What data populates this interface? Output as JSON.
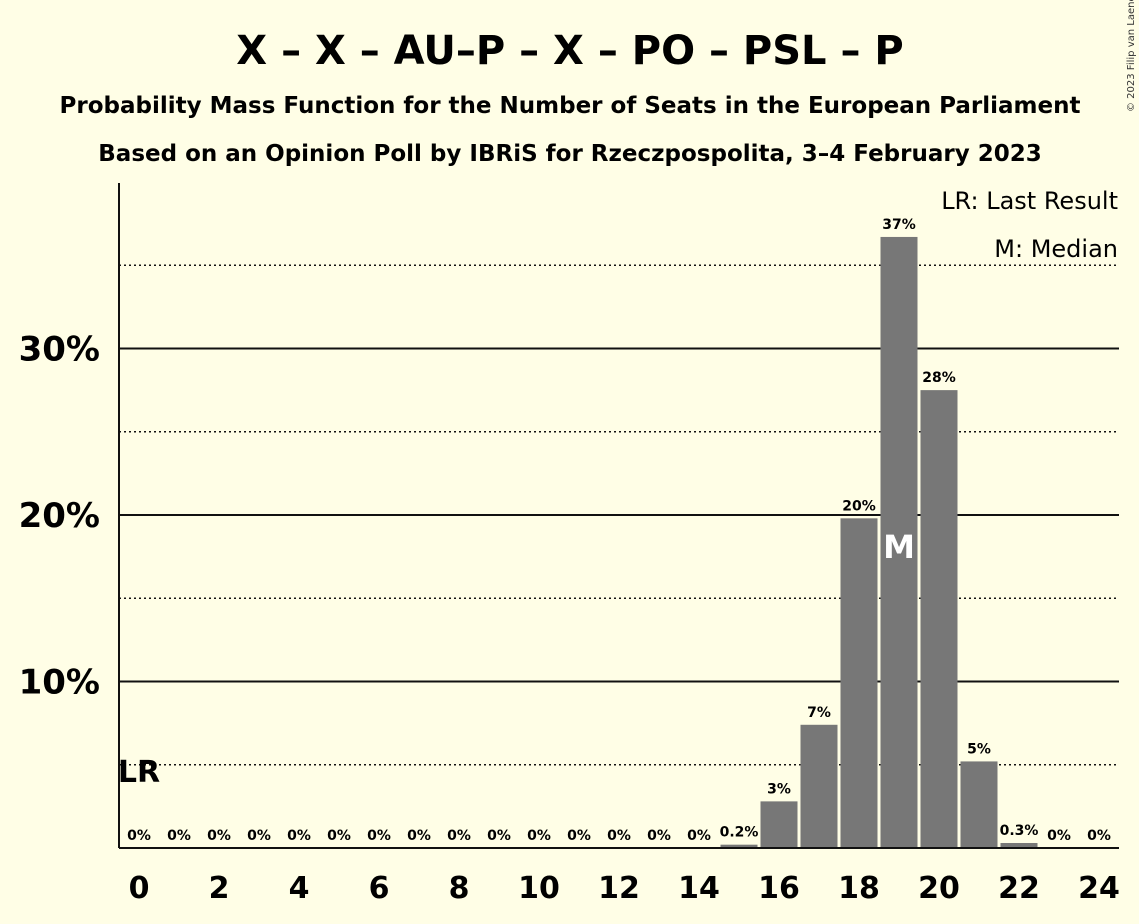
{
  "chart_data": {
    "type": "bar",
    "title": "X – X – AU–P – X – PO – PSL – P",
    "subtitle1": "Probability Mass Function for the Number of Seats in the European Parliament",
    "subtitle2": "Based on an Opinion Poll by IBRiS for Rzeczpospolita, 3–4 February 2023",
    "copyright": "© 2023 Filip van Laenen",
    "legend": {
      "lr": "LR: Last Result",
      "median": "M: Median",
      "position": "top-right"
    },
    "x": [
      0,
      1,
      2,
      3,
      4,
      5,
      6,
      7,
      8,
      9,
      10,
      11,
      12,
      13,
      14,
      15,
      16,
      17,
      18,
      19,
      20,
      21,
      22,
      23,
      24
    ],
    "values": [
      0,
      0,
      0,
      0,
      0,
      0,
      0,
      0,
      0,
      0,
      0,
      0,
      0,
      0,
      0,
      0.2,
      2.8,
      7.4,
      19.8,
      36.7,
      27.5,
      5.2,
      0.3,
      0,
      0
    ],
    "labels": [
      "0%",
      "0%",
      "0%",
      "0%",
      "0%",
      "0%",
      "0%",
      "0%",
      "0%",
      "0%",
      "0%",
      "0%",
      "0%",
      "0%",
      "0%",
      "0.2%",
      "3%",
      "7%",
      "20%",
      "37%",
      "28%",
      "5%",
      "0.3%",
      "0%",
      "0%"
    ],
    "xticks": [
      0,
      2,
      4,
      6,
      8,
      10,
      12,
      14,
      16,
      18,
      20,
      22,
      24
    ],
    "xtick_labels": [
      "0",
      "2",
      "4",
      "6",
      "8",
      "10",
      "12",
      "14",
      "16",
      "18",
      "20",
      "22",
      "24"
    ],
    "yticks": [
      10,
      20,
      30
    ],
    "ytick_labels": [
      "10%",
      "20%",
      "30%"
    ],
    "ylim": [
      0,
      40
    ],
    "last_result": {
      "seat": 0,
      "label": "LR"
    },
    "median": {
      "seat": 19,
      "label": "M"
    },
    "colors": {
      "bar": "#777777",
      "background": "#FFFEE6",
      "grid": "#111111"
    }
  }
}
